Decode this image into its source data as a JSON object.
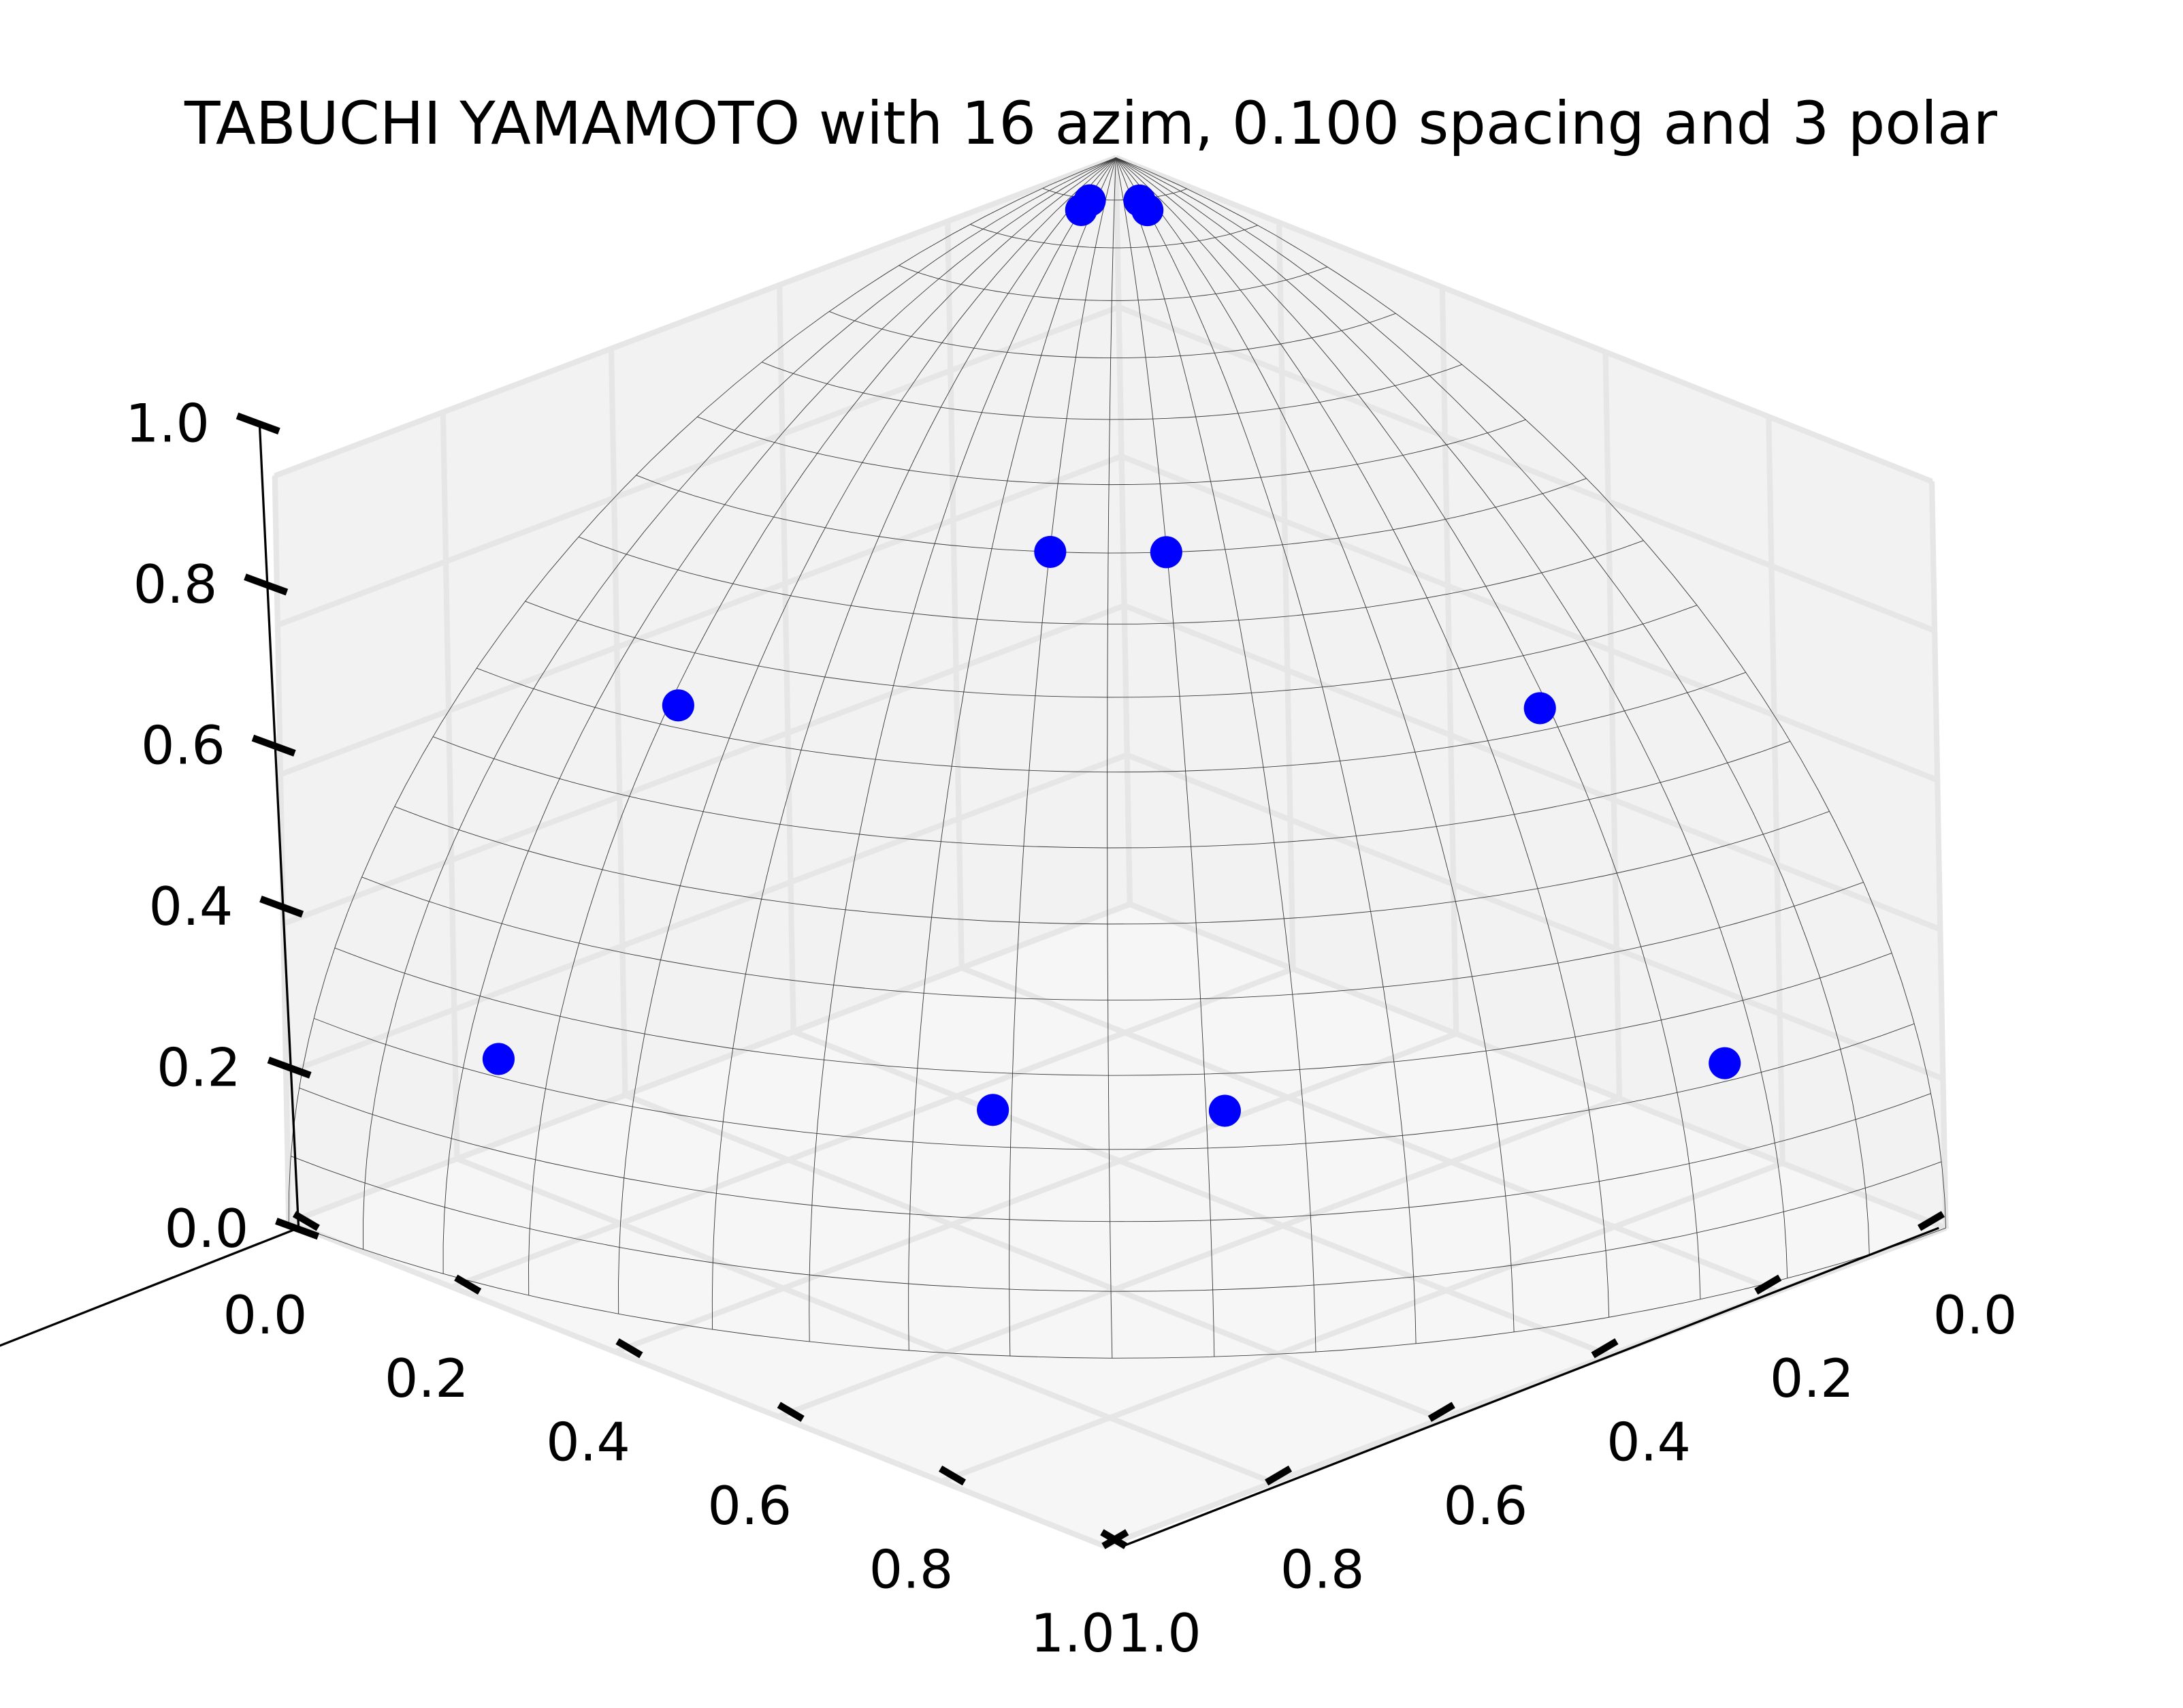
{
  "chart_data": {
    "type": "scatter",
    "title": "TABUCHI YAMAMOTO with 16 azim, 0.100 spacing and 3 polar",
    "xlabel": "",
    "ylabel": "",
    "zlabel": "",
    "xlim": [
      0.0,
      1.0
    ],
    "ylim": [
      0.0,
      1.0
    ],
    "zlim": [
      0.0,
      1.0
    ],
    "x_ticks": [
      "0.0",
      "0.2",
      "0.4",
      "0.6",
      "0.8",
      "1.0"
    ],
    "y_ticks": [
      "0.0",
      "0.2",
      "0.4",
      "0.6",
      "0.8",
      "1.0"
    ],
    "z_ticks": [
      "0.0",
      "0.2",
      "0.4",
      "0.6",
      "0.8",
      "1.0"
    ],
    "grid": true,
    "surface": "unit sphere octant (wireframe)",
    "marker_color": "#0000ff",
    "points": [
      {
        "x": 0.09,
        "y": 0.05,
        "z": 0.99
      },
      {
        "x": 0.04,
        "y": 0.07,
        "z": 0.99
      },
      {
        "x": 0.07,
        "y": 0.04,
        "z": 0.99
      },
      {
        "x": 0.05,
        "y": 0.09,
        "z": 0.99
      },
      {
        "x": 0.72,
        "y": 0.2,
        "z": 0.66
      },
      {
        "x": 0.44,
        "y": 0.37,
        "z": 0.82
      },
      {
        "x": 0.37,
        "y": 0.44,
        "z": 0.82
      },
      {
        "x": 0.2,
        "y": 0.72,
        "z": 0.66
      },
      {
        "x": 0.94,
        "y": 0.2,
        "z": 0.28
      },
      {
        "x": 0.74,
        "y": 0.6,
        "z": 0.3
      },
      {
        "x": 0.6,
        "y": 0.74,
        "z": 0.3
      },
      {
        "x": 0.2,
        "y": 0.94,
        "z": 0.28
      }
    ]
  }
}
